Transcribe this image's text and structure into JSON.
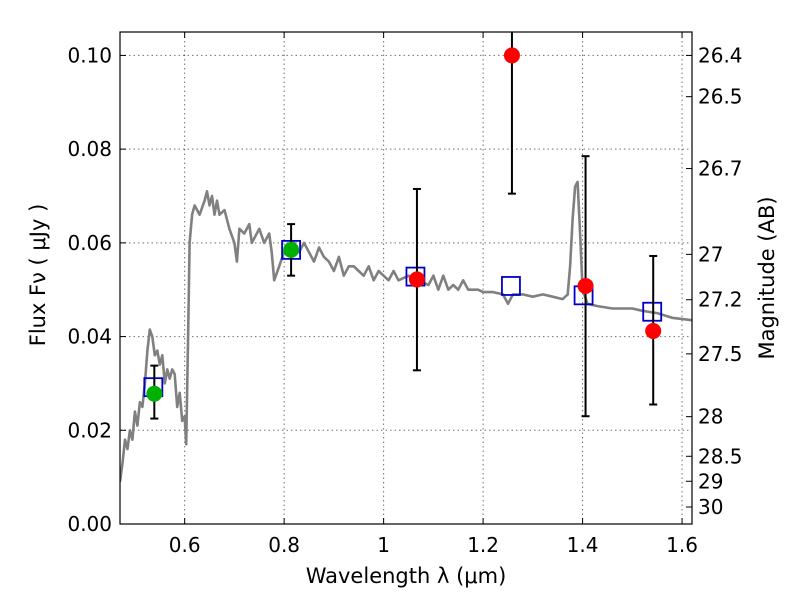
{
  "chart_data": {
    "type": "scatter",
    "xlabel": "Wavelength  λ (μm)",
    "ylabel": "Flux  Fν  ( μJy )",
    "ylabel2": "Magnitude (AB)",
    "xlim": [
      0.47,
      1.62
    ],
    "ylim": [
      0.0,
      0.105
    ],
    "grid": true,
    "x_ticks": [
      {
        "value": 0.6,
        "label": "0.6"
      },
      {
        "value": 0.8,
        "label": "0.8"
      },
      {
        "value": 1.0,
        "label": "1"
      },
      {
        "value": 1.2,
        "label": "1.2"
      },
      {
        "value": 1.4,
        "label": "1.4"
      },
      {
        "value": 1.6,
        "label": "1.6"
      }
    ],
    "y_ticks": [
      {
        "value": 0.0,
        "label": "0.00"
      },
      {
        "value": 0.02,
        "label": "0.02"
      },
      {
        "value": 0.04,
        "label": "0.04"
      },
      {
        "value": 0.06,
        "label": "0.06"
      },
      {
        "value": 0.08,
        "label": "0.08"
      },
      {
        "value": 0.1,
        "label": "0.10"
      }
    ],
    "y2_ticks": [
      {
        "value": 26.4,
        "label": "26.4"
      },
      {
        "value": 26.5,
        "label": "26.5"
      },
      {
        "value": 26.7,
        "label": "26.7"
      },
      {
        "value": 27.0,
        "label": "27"
      },
      {
        "value": 27.2,
        "label": "27.2"
      },
      {
        "value": 27.5,
        "label": "27.5"
      },
      {
        "value": 28.0,
        "label": "28"
      },
      {
        "value": 28.5,
        "label": "28.5"
      },
      {
        "value": 29.0,
        "label": "29"
      },
      {
        "value": 30.0,
        "label": "30"
      }
    ],
    "series": [
      {
        "kind": "line",
        "color": "#808080",
        "points": [
          [
            0.47,
            0.009
          ],
          [
            0.475,
            0.013
          ],
          [
            0.48,
            0.018
          ],
          [
            0.485,
            0.016
          ],
          [
            0.49,
            0.02
          ],
          [
            0.495,
            0.018
          ],
          [
            0.5,
            0.024
          ],
          [
            0.505,
            0.021
          ],
          [
            0.51,
            0.026
          ],
          [
            0.515,
            0.025
          ],
          [
            0.52,
            0.03
          ],
          [
            0.525,
            0.037
          ],
          [
            0.53,
            0.0415
          ],
          [
            0.535,
            0.04
          ],
          [
            0.54,
            0.036
          ],
          [
            0.545,
            0.037
          ],
          [
            0.55,
            0.034
          ],
          [
            0.555,
            0.036
          ],
          [
            0.56,
            0.03
          ],
          [
            0.565,
            0.033
          ],
          [
            0.57,
            0.031
          ],
          [
            0.575,
            0.033
          ],
          [
            0.58,
            0.032
          ],
          [
            0.585,
            0.025
          ],
          [
            0.59,
            0.028
          ],
          [
            0.595,
            0.022
          ],
          [
            0.6,
            0.023
          ],
          [
            0.603,
            0.017
          ],
          [
            0.607,
            0.04
          ],
          [
            0.61,
            0.06
          ],
          [
            0.615,
            0.066
          ],
          [
            0.62,
            0.068
          ],
          [
            0.63,
            0.066
          ],
          [
            0.64,
            0.069
          ],
          [
            0.645,
            0.071
          ],
          [
            0.65,
            0.068
          ],
          [
            0.655,
            0.07
          ],
          [
            0.66,
            0.066
          ],
          [
            0.665,
            0.069
          ],
          [
            0.67,
            0.066
          ],
          [
            0.68,
            0.067
          ],
          [
            0.69,
            0.063
          ],
          [
            0.7,
            0.06
          ],
          [
            0.705,
            0.056
          ],
          [
            0.71,
            0.063
          ],
          [
            0.72,
            0.062
          ],
          [
            0.73,
            0.064
          ],
          [
            0.735,
            0.06
          ],
          [
            0.74,
            0.061
          ],
          [
            0.75,
            0.063
          ],
          [
            0.76,
            0.06
          ],
          [
            0.77,
            0.062
          ],
          [
            0.775,
            0.058
          ],
          [
            0.78,
            0.052
          ],
          [
            0.79,
            0.055
          ],
          [
            0.8,
            0.058
          ],
          [
            0.81,
            0.059
          ],
          [
            0.82,
            0.06
          ],
          [
            0.83,
            0.058
          ],
          [
            0.84,
            0.06
          ],
          [
            0.85,
            0.058
          ],
          [
            0.86,
            0.056
          ],
          [
            0.87,
            0.059
          ],
          [
            0.88,
            0.057
          ],
          [
            0.89,
            0.056
          ],
          [
            0.9,
            0.054
          ],
          [
            0.91,
            0.057
          ],
          [
            0.92,
            0.053
          ],
          [
            0.93,
            0.055
          ],
          [
            0.94,
            0.055
          ],
          [
            0.95,
            0.054
          ],
          [
            0.96,
            0.053
          ],
          [
            0.97,
            0.055
          ],
          [
            0.98,
            0.052
          ],
          [
            0.99,
            0.054
          ],
          [
            1.0,
            0.053
          ],
          [
            1.01,
            0.052
          ],
          [
            1.02,
            0.054
          ],
          [
            1.03,
            0.052
          ],
          [
            1.05,
            0.053
          ],
          [
            1.07,
            0.052
          ],
          [
            1.09,
            0.051
          ],
          [
            1.1,
            0.053
          ],
          [
            1.11,
            0.05
          ],
          [
            1.12,
            0.053
          ],
          [
            1.13,
            0.05
          ],
          [
            1.14,
            0.051
          ],
          [
            1.15,
            0.05
          ],
          [
            1.16,
            0.052
          ],
          [
            1.17,
            0.05
          ],
          [
            1.19,
            0.05
          ],
          [
            1.2,
            0.0495
          ],
          [
            1.22,
            0.0495
          ],
          [
            1.24,
            0.049
          ],
          [
            1.25,
            0.047
          ],
          [
            1.26,
            0.049
          ],
          [
            1.28,
            0.049
          ],
          [
            1.3,
            0.0485
          ],
          [
            1.32,
            0.049
          ],
          [
            1.34,
            0.0485
          ],
          [
            1.36,
            0.048
          ],
          [
            1.37,
            0.049
          ],
          [
            1.375,
            0.055
          ],
          [
            1.38,
            0.065
          ],
          [
            1.385,
            0.072
          ],
          [
            1.39,
            0.073
          ],
          [
            1.395,
            0.062
          ],
          [
            1.4,
            0.05
          ],
          [
            1.41,
            0.047
          ],
          [
            1.43,
            0.0465
          ],
          [
            1.46,
            0.046
          ],
          [
            1.5,
            0.046
          ],
          [
            1.52,
            0.0455
          ],
          [
            1.55,
            0.045
          ],
          [
            1.58,
            0.044
          ],
          [
            1.62,
            0.0435
          ]
        ]
      },
      {
        "kind": "model-points",
        "marker": "open-square",
        "color": "#0000cc",
        "points": [
          [
            0.537,
            0.0292
          ],
          [
            0.814,
            0.0585
          ],
          [
            1.064,
            0.0528
          ],
          [
            1.256,
            0.0508
          ],
          [
            1.402,
            0.0488
          ],
          [
            1.54,
            0.0453
          ]
        ]
      },
      {
        "kind": "observations",
        "marker": "filled-circle",
        "points": [
          {
            "x": 0.539,
            "y": 0.0278,
            "err_low": 0.0225,
            "err_high": 0.0338,
            "color": "#00b000"
          },
          {
            "x": 0.814,
            "y": 0.0585,
            "err_low": 0.053,
            "err_high": 0.064,
            "color": "#00b000"
          },
          {
            "x": 1.067,
            "y": 0.0522,
            "err_low": 0.0328,
            "err_high": 0.0715,
            "color": "#ff0000"
          },
          {
            "x": 1.258,
            "y": 0.1,
            "err_low": 0.0705,
            "err_high": 0.105,
            "color": "#ff0000"
          },
          {
            "x": 1.406,
            "y": 0.0508,
            "err_low": 0.023,
            "err_high": 0.0785,
            "color": "#ff0000"
          },
          {
            "x": 1.542,
            "y": 0.0412,
            "err_low": 0.0255,
            "err_high": 0.0572,
            "color": "#ff0000"
          }
        ]
      }
    ]
  }
}
